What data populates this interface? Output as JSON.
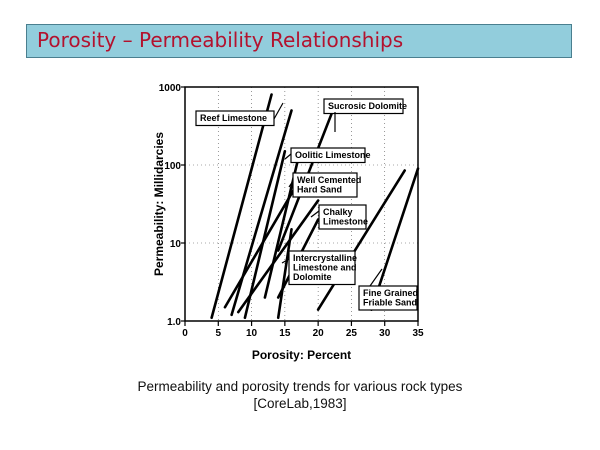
{
  "slide_title": "Porosity – Permeability Relationships",
  "caption": {
    "line1": "Permeability and porosity trends for various rock types",
    "line2": "[CoreLab,1983]"
  },
  "chart_data": {
    "type": "line",
    "title": "",
    "xlabel": "Porosity: Percent",
    "ylabel": "Permeability: Millidarcies",
    "xlim": [
      0,
      35
    ],
    "ylim": [
      1,
      1000
    ],
    "yscale": "log",
    "x_ticks": [
      0,
      5,
      10,
      15,
      20,
      25,
      30,
      35
    ],
    "y_ticks": [
      1.0,
      10,
      100,
      1000
    ],
    "y_tick_labels": [
      "1.0",
      "10",
      "100",
      "1000"
    ],
    "grid": true,
    "series": [
      {
        "name": "Reef Limestone",
        "x": [
          4,
          13
        ],
        "y": [
          1.1,
          800
        ]
      },
      {
        "name": "Reef Limestone",
        "x": [
          7,
          16
        ],
        "y": [
          1.2,
          500
        ]
      },
      {
        "name": "Sucrosic Dolomite",
        "x": [
          14,
          22
        ],
        "y": [
          8,
          450
        ]
      },
      {
        "name": "Oolitic Limestone",
        "x": [
          9,
          15
        ],
        "y": [
          1.1,
          150
        ]
      },
      {
        "name": "Oolitic Limestone",
        "x": [
          12,
          17
        ],
        "y": [
          2,
          120
        ]
      },
      {
        "name": "Well Cemented Hard Sand",
        "x": [
          6,
          17
        ],
        "y": [
          1.5,
          60
        ]
      },
      {
        "name": "Well Cemented Hard Sand",
        "x": [
          8,
          20
        ],
        "y": [
          1.3,
          35
        ]
      },
      {
        "name": "Chalky Limestone",
        "x": [
          14,
          20
        ],
        "y": [
          2,
          20
        ]
      },
      {
        "name": "Intercrystalline Limestone and Dolomite",
        "x": [
          14,
          16
        ],
        "y": [
          1.1,
          15
        ]
      },
      {
        "name": "Intercrystalline Limestone and Dolomite",
        "x": [
          20,
          33
        ],
        "y": [
          1.4,
          85
        ]
      },
      {
        "name": "Fine Grained Friable Sand",
        "x": [
          28,
          35
        ],
        "y": [
          1.4,
          90
        ]
      }
    ],
    "annotations": [
      {
        "text": [
          "Reef Limestone"
        ]
      },
      {
        "text": [
          "Sucrosic Dolomite"
        ]
      },
      {
        "text": [
          "Oolitic Limestone"
        ]
      },
      {
        "text": [
          "Well Cemented",
          "Hard Sand"
        ]
      },
      {
        "text": [
          "Chalky",
          "Limestone"
        ]
      },
      {
        "text": [
          "Intercrystalline",
          "Limestone and",
          "Dolomite"
        ]
      },
      {
        "text": [
          "Fine Grained",
          "Friable Sand"
        ]
      }
    ]
  }
}
